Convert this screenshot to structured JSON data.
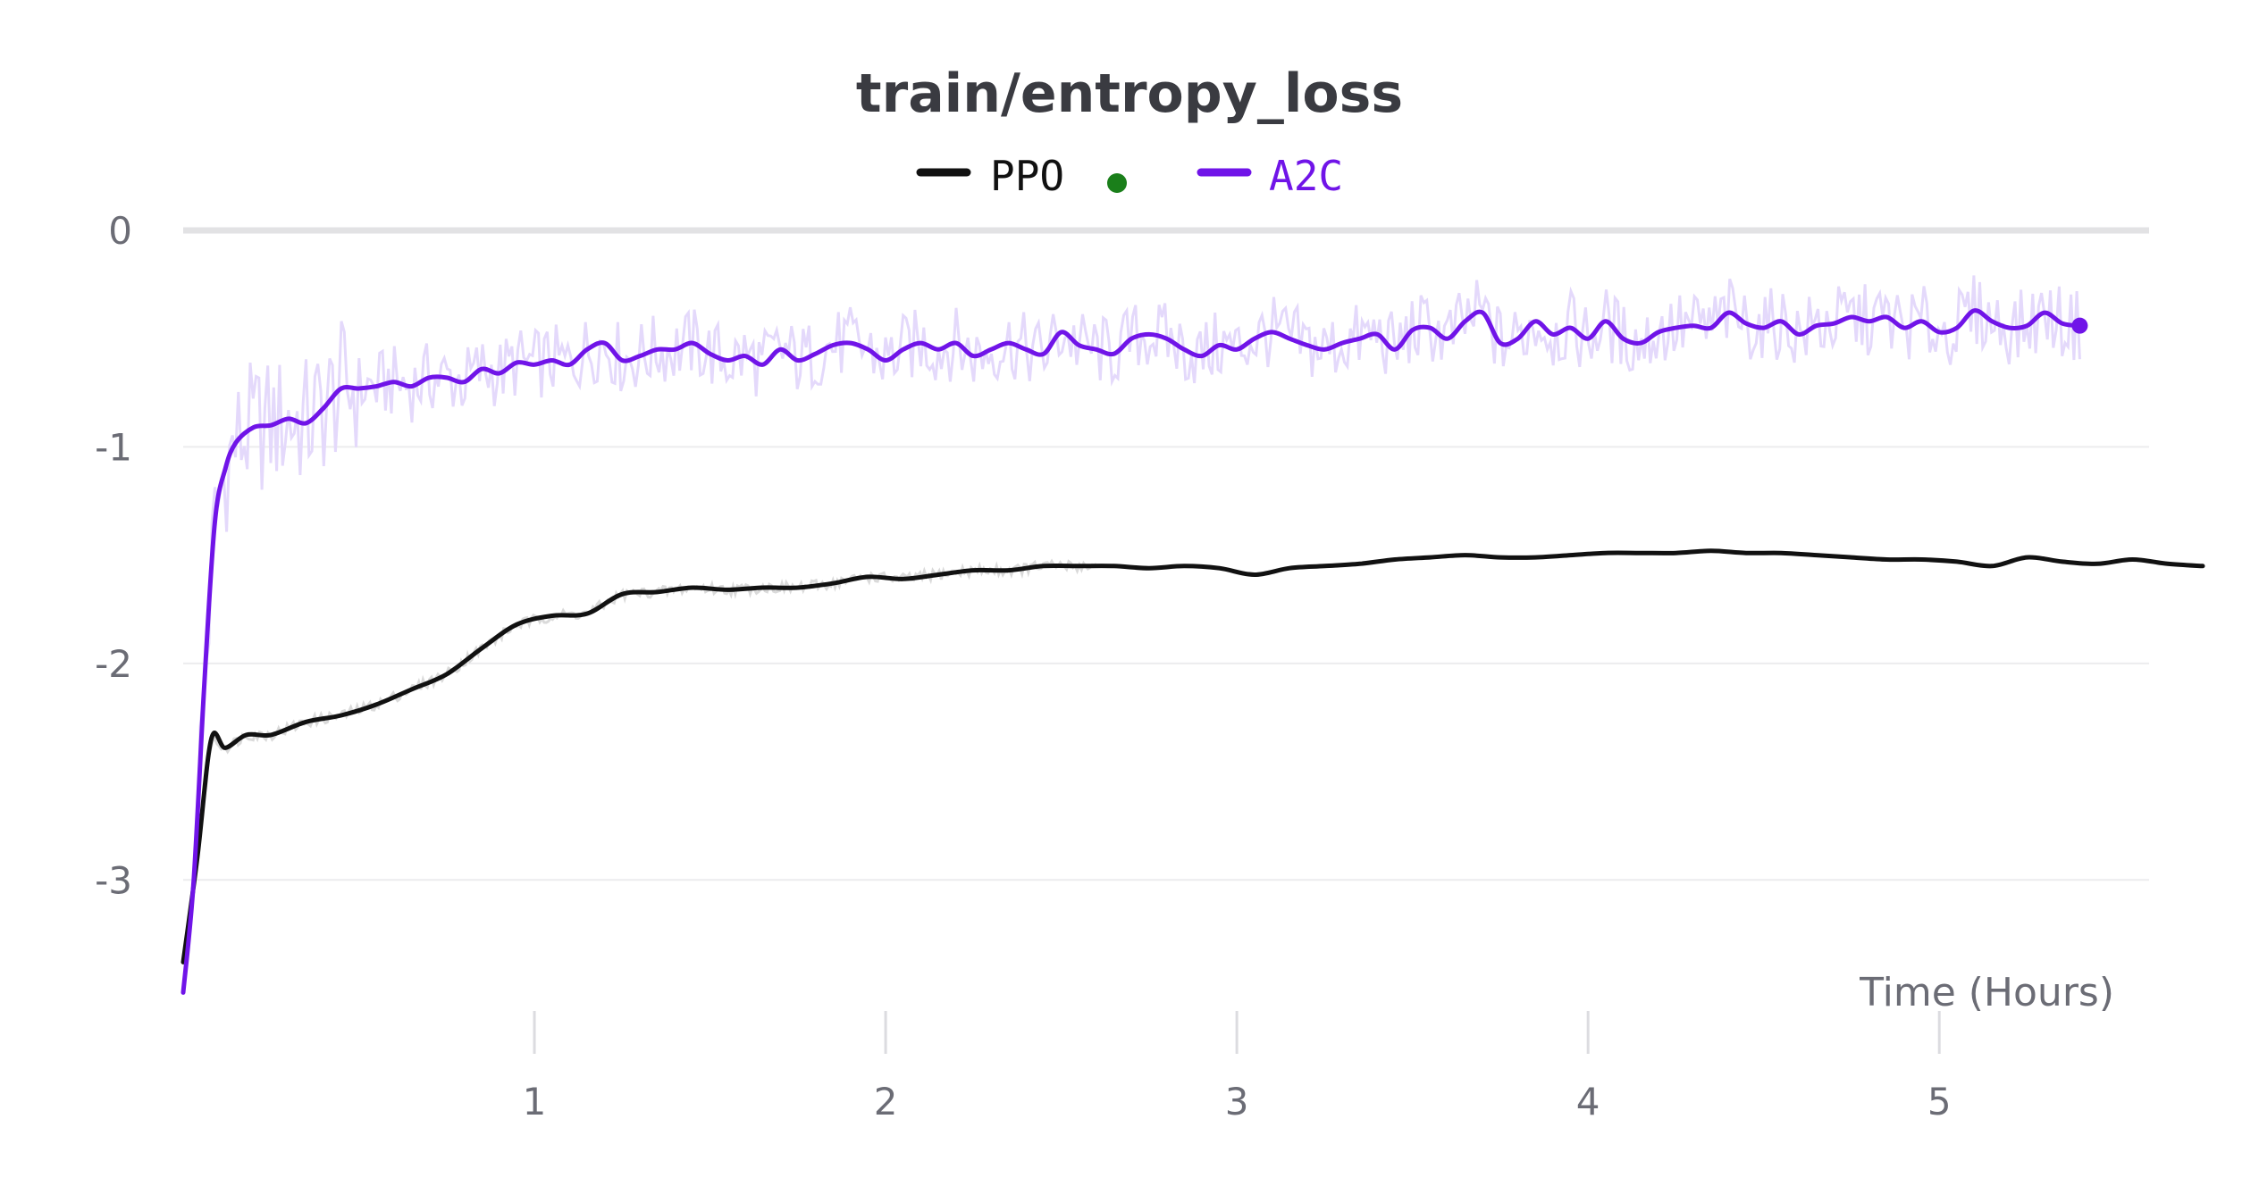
{
  "chart_data": {
    "type": "line",
    "title": "train/entropy_loss",
    "xlabel": "Time (Hours)",
    "ylabel": "",
    "xlim": [
      0,
      5.75
    ],
    "ylim": [
      -3.7,
      0
    ],
    "x_ticks": [
      "1",
      "2",
      "3",
      "4",
      "5"
    ],
    "y_ticks": [
      "0",
      "-1",
      "-2",
      "-3"
    ],
    "legend_position": "top-center",
    "grid": true,
    "series": [
      {
        "name": "PPO",
        "color": "#111111",
        "status": "running",
        "status_color": "#1a7f1a",
        "x": [
          0.0,
          0.04,
          0.08,
          0.12,
          0.18,
          0.25,
          0.35,
          0.45,
          0.55,
          0.65,
          0.75,
          0.85,
          0.95,
          1.05,
          1.15,
          1.25,
          1.35,
          1.45,
          1.55,
          1.65,
          1.75,
          1.85,
          1.95,
          2.05,
          2.15,
          2.25,
          2.35,
          2.45,
          2.55,
          2.65,
          2.75,
          2.85,
          2.95,
          3.05,
          3.15,
          3.25,
          3.35,
          3.45,
          3.55,
          3.65,
          3.75,
          3.85,
          3.95,
          4.05,
          4.15,
          4.25,
          4.35,
          4.45,
          4.55,
          4.65,
          4.75,
          4.85,
          4.95,
          5.05,
          5.15,
          5.25,
          5.35,
          5.45,
          5.55,
          5.65,
          5.75
        ],
        "values": [
          -3.38,
          -2.9,
          -2.35,
          -2.39,
          -2.33,
          -2.33,
          -2.27,
          -2.24,
          -2.19,
          -2.12,
          -2.05,
          -1.93,
          -1.82,
          -1.78,
          -1.77,
          -1.68,
          -1.67,
          -1.65,
          -1.66,
          -1.65,
          -1.65,
          -1.63,
          -1.6,
          -1.61,
          -1.59,
          -1.57,
          -1.57,
          -1.55,
          -1.55,
          -1.55,
          -1.56,
          -1.55,
          -1.56,
          -1.59,
          -1.56,
          -1.55,
          -1.54,
          -1.52,
          -1.51,
          -1.5,
          -1.51,
          -1.51,
          -1.5,
          -1.49,
          -1.49,
          -1.49,
          -1.48,
          -1.49,
          -1.49,
          -1.5,
          -1.51,
          -1.52,
          -1.52,
          -1.53,
          -1.55,
          -1.51,
          -1.53,
          -1.54,
          -1.52,
          -1.54,
          -1.55
        ]
      },
      {
        "name": "A2C",
        "color": "#7014e8",
        "raw_color": "#e4d9fb",
        "x": [
          0.0,
          0.03,
          0.06,
          0.09,
          0.12,
          0.15,
          0.2,
          0.25,
          0.3,
          0.35,
          0.4,
          0.45,
          0.5,
          0.55,
          0.6,
          0.65,
          0.7,
          0.75,
          0.8,
          0.85,
          0.9,
          0.95,
          1.0,
          1.05,
          1.1,
          1.15,
          1.2,
          1.25,
          1.3,
          1.35,
          1.4,
          1.45,
          1.5,
          1.55,
          1.6,
          1.65,
          1.7,
          1.75,
          1.8,
          1.85,
          1.9,
          1.95,
          2.0,
          2.05,
          2.1,
          2.15,
          2.2,
          2.25,
          2.3,
          2.35,
          2.4,
          2.45,
          2.5,
          2.55,
          2.6,
          2.65,
          2.7,
          2.75,
          2.8,
          2.85,
          2.9,
          2.95,
          3.0,
          3.05,
          3.1,
          3.15,
          3.2,
          3.25,
          3.3,
          3.35,
          3.4,
          3.45,
          3.5,
          3.55,
          3.6,
          3.65,
          3.7,
          3.75,
          3.8,
          3.85,
          3.9,
          3.95,
          4.0,
          4.05,
          4.1,
          4.15,
          4.2,
          4.25,
          4.3,
          4.35,
          4.4,
          4.45,
          4.5,
          4.55,
          4.6,
          4.65,
          4.7,
          4.75,
          4.8,
          4.85,
          4.9,
          4.95,
          5.0,
          5.05,
          5.1,
          5.15,
          5.2,
          5.25,
          5.3,
          5.35,
          5.4
        ],
        "values": [
          -3.52,
          -3.0,
          -2.1,
          -1.35,
          -1.1,
          -0.98,
          -0.91,
          -0.9,
          -0.87,
          -0.89,
          -0.82,
          -0.73,
          -0.73,
          -0.72,
          -0.7,
          -0.72,
          -0.68,
          -0.68,
          -0.7,
          -0.64,
          -0.66,
          -0.61,
          -0.62,
          -0.6,
          -0.62,
          -0.55,
          -0.52,
          -0.6,
          -0.58,
          -0.55,
          -0.55,
          -0.52,
          -0.57,
          -0.6,
          -0.58,
          -0.62,
          -0.55,
          -0.6,
          -0.57,
          -0.53,
          -0.52,
          -0.55,
          -0.6,
          -0.55,
          -0.52,
          -0.55,
          -0.52,
          -0.58,
          -0.55,
          -0.52,
          -0.55,
          -0.57,
          -0.47,
          -0.53,
          -0.55,
          -0.57,
          -0.5,
          -0.48,
          -0.5,
          -0.55,
          -0.58,
          -0.53,
          -0.55,
          -0.5,
          -0.47,
          -0.5,
          -0.53,
          -0.55,
          -0.52,
          -0.5,
          -0.48,
          -0.55,
          -0.46,
          -0.45,
          -0.5,
          -0.42,
          -0.38,
          -0.52,
          -0.5,
          -0.42,
          -0.48,
          -0.45,
          -0.5,
          -0.42,
          -0.5,
          -0.52,
          -0.47,
          -0.45,
          -0.44,
          -0.45,
          -0.38,
          -0.43,
          -0.45,
          -0.42,
          -0.48,
          -0.44,
          -0.43,
          -0.4,
          -0.42,
          -0.4,
          -0.45,
          -0.42,
          -0.47,
          -0.45,
          -0.37,
          -0.42,
          -0.45,
          -0.44,
          -0.38,
          -0.43,
          -0.44
        ]
      }
    ]
  }
}
